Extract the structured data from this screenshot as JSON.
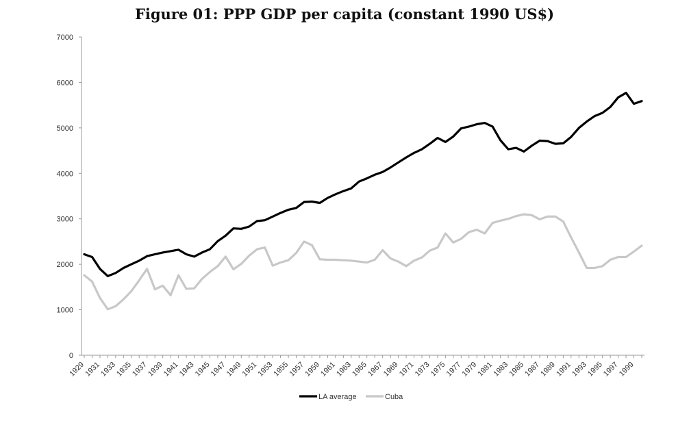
{
  "chart_data": {
    "type": "line",
    "title": "Figure 01: PPP GDP per capita (constant 1990 US$)",
    "xlabel": "",
    "ylabel": "",
    "ylim": [
      0,
      7000
    ],
    "yticks": [
      0,
      1000,
      2000,
      3000,
      4000,
      5000,
      6000,
      7000
    ],
    "x": [
      1929,
      1930,
      1931,
      1932,
      1933,
      1934,
      1935,
      1936,
      1937,
      1938,
      1939,
      1940,
      1941,
      1942,
      1943,
      1944,
      1945,
      1946,
      1947,
      1948,
      1949,
      1950,
      1951,
      1952,
      1953,
      1954,
      1955,
      1956,
      1957,
      1958,
      1959,
      1960,
      1961,
      1962,
      1963,
      1964,
      1965,
      1966,
      1967,
      1968,
      1969,
      1970,
      1971,
      1972,
      1973,
      1974,
      1975,
      1976,
      1977,
      1978,
      1979,
      1980,
      1981,
      1982,
      1983,
      1984,
      1985,
      1986,
      1987,
      1988,
      1989,
      1990,
      1991,
      1992,
      1993,
      1994,
      1995,
      1996,
      1997,
      1998,
      1999,
      2000
    ],
    "xtick_labels": [
      "1929",
      "1931",
      "1933",
      "1935",
      "1937",
      "1939",
      "1941",
      "1943",
      "1945",
      "1947",
      "1949",
      "1951",
      "1953",
      "1955",
      "1957",
      "1959",
      "1961",
      "1963",
      "1965",
      "1967",
      "1969",
      "1971",
      "1973",
      "1975",
      "1977",
      "1979",
      "1981",
      "1983",
      "1985",
      "1987",
      "1989",
      "1991",
      "1993",
      "1995",
      "1997",
      "1999"
    ],
    "series": [
      {
        "name": "LA average",
        "color": "#000000",
        "values": [
          2220,
          2160,
          1900,
          1740,
          1810,
          1920,
          2000,
          2080,
          2180,
          2220,
          2260,
          2290,
          2320,
          2220,
          2170,
          2260,
          2330,
          2510,
          2630,
          2790,
          2780,
          2830,
          2950,
          2970,
          3050,
          3130,
          3200,
          3240,
          3370,
          3380,
          3350,
          3460,
          3540,
          3610,
          3670,
          3820,
          3890,
          3970,
          4030,
          4130,
          4240,
          4350,
          4450,
          4530,
          4650,
          4780,
          4690,
          4810,
          4990,
          5030,
          5080,
          5110,
          5030,
          4730,
          4530,
          4560,
          4480,
          4610,
          4720,
          4710,
          4650,
          4660,
          4800,
          5000,
          5140,
          5260,
          5330,
          5460,
          5670,
          5770,
          5530,
          5590
        ]
      },
      {
        "name": "Cuba",
        "color": "#c8c8c8",
        "values": [
          1760,
          1620,
          1260,
          1010,
          1080,
          1230,
          1410,
          1650,
          1900,
          1450,
          1530,
          1320,
          1760,
          1460,
          1470,
          1680,
          1830,
          1960,
          2170,
          1890,
          2010,
          2190,
          2330,
          2370,
          1970,
          2040,
          2090,
          2250,
          2500,
          2420,
          2110,
          2100,
          2100,
          2090,
          2080,
          2060,
          2040,
          2100,
          2310,
          2130,
          2060,
          1960,
          2080,
          2150,
          2300,
          2370,
          2680,
          2480,
          2560,
          2710,
          2760,
          2680,
          2910,
          2960,
          3000,
          3060,
          3100,
          3080,
          2990,
          3050,
          3050,
          2940,
          2590,
          2260,
          1920,
          1920,
          1960,
          2100,
          2160,
          2160,
          2280,
          2410
        ]
      }
    ],
    "legend_position": "bottom-center",
    "grid": false
  }
}
